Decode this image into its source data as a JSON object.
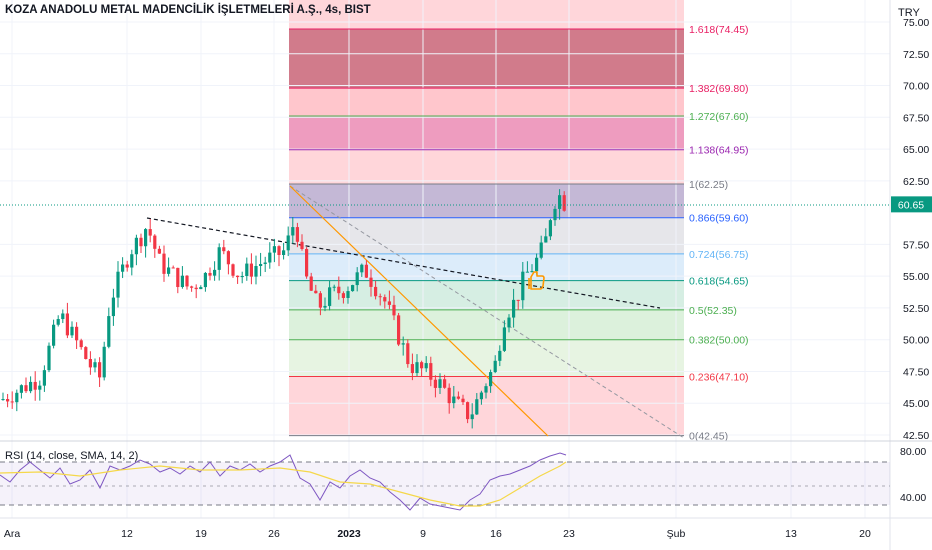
{
  "header": {
    "symbol_title": "KOZA ANADOLU METAL MADENCİLİK İŞLETMELERİ A.Ş., 4s, BIST",
    "currency": "TRY"
  },
  "rsi": {
    "title": "RSI (14, close, SMA, 14, 2)",
    "axis_labels": [
      "80.00",
      "40.00"
    ]
  },
  "last_price": {
    "label": "60.65",
    "value": 60.65,
    "color": "#089981"
  },
  "price_axis": {
    "ticks": [
      "75.00",
      "72.50",
      "70.00",
      "67.50",
      "65.00",
      "62.50",
      "57.50",
      "55.00",
      "52.50",
      "50.00",
      "47.50",
      "45.00",
      "42.50"
    ]
  },
  "time_axis": {
    "ticks": [
      "Ara",
      "12",
      "19",
      "26",
      "2023",
      "9",
      "16",
      "23",
      "Şub",
      "13",
      "20"
    ]
  },
  "fibonacci": {
    "levels": [
      {
        "label": "1.618(74.45)",
        "price": 74.45,
        "color": "#e91e63",
        "zone_color": "#c9979d"
      },
      {
        "label": "1.382(69.80)",
        "price": 69.8,
        "color": "#e91e63",
        "zone_color": "#d17b8b"
      },
      {
        "label": "1.272(67.60)",
        "price": 67.6,
        "color": "#4caf50",
        "zone_color": "#ffc6cc"
      },
      {
        "label": "1.138(64.95)",
        "price": 64.95,
        "color": "#9c27b0",
        "zone_color": "#ee9cbf"
      },
      {
        "label": "1(62.25)",
        "price": 62.25,
        "color": "#787b86",
        "zone_color": "#ffd6da"
      },
      {
        "label": "0.866(59.60)",
        "price": 59.6,
        "color": "#2962ff",
        "zone_color": "#c4b8d6"
      },
      {
        "label": "0.724(56.75)",
        "price": 56.75,
        "color": "#64b5f6",
        "zone_color": "#e6e6ea"
      },
      {
        "label": "0.618(54.65)",
        "price": 54.65,
        "color": "#089981",
        "zone_color": "#dcecfa"
      },
      {
        "label": "0.5(52.35)",
        "price": 52.35,
        "color": "#4caf50",
        "zone_color": "#d6eee3"
      },
      {
        "label": "0.382(50.00)",
        "price": 50.0,
        "color": "#4caf50",
        "zone_color": "#dcf1dc"
      },
      {
        "label": "0.236(47.10)",
        "price": 47.1,
        "color": "#f23645",
        "zone_color": "#e7f4e2"
      },
      {
        "label": "0(42.45)",
        "price": 42.45,
        "color": "#787b86",
        "zone_color": "#ffd6da"
      }
    ]
  }
}
